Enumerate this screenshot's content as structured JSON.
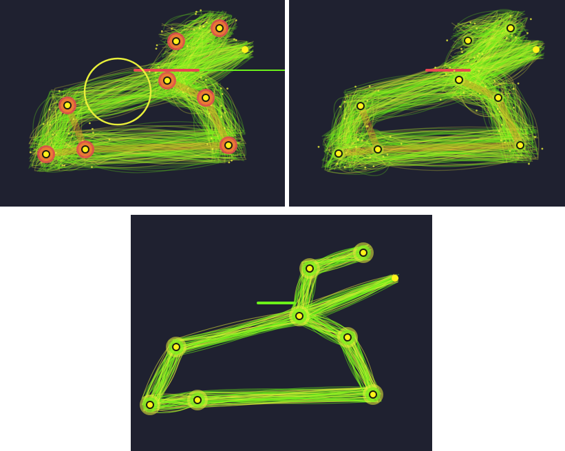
{
  "figure": {
    "colors": {
      "background": "#1f2130",
      "trace_green": "#6cf21a",
      "trace_yellow": "#e8ef3a",
      "heat_orange": "#f08a2c",
      "heat_red": "#e8454f",
      "node_core": "#fff21a",
      "node_ring": "#1c1c10"
    },
    "panels": [
      {
        "id": "panel-a",
        "variant": "dense-with-highlight-circle"
      },
      {
        "id": "panel-b",
        "variant": "dense"
      },
      {
        "id": "panel-c",
        "variant": "sparse"
      }
    ]
  }
}
